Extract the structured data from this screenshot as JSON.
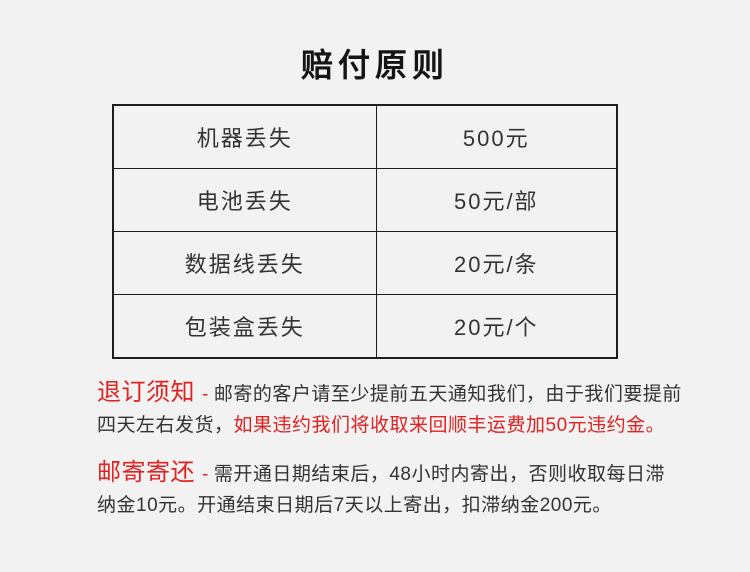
{
  "title": "赔付原则",
  "table": {
    "rows": [
      {
        "item": "机器丢失",
        "value": "500元"
      },
      {
        "item": "电池丢失",
        "value": "50元/部"
      },
      {
        "item": "数据线丢失",
        "value": "20元/条"
      },
      {
        "item": "包装盒丢失",
        "value": "20元/个"
      }
    ]
  },
  "notes": [
    {
      "heading": "退订须知",
      "separator": "-",
      "body": "邮寄的客户请至少提前五天通知我们，由于我们要提前四天左右发货，",
      "body_red": "如果违约我们将收取来回顺丰运费加50元违约金。"
    },
    {
      "heading": "邮寄寄还",
      "separator": "-",
      "body": "需开通日期结束后，48小时内寄出，否则收取每日滞纳金10元。开通结束日期后7天以上寄出，扣滞纳金200元。",
      "body_red": ""
    }
  ],
  "colors": {
    "background": "#f2f2f2",
    "text_dark": "#333333",
    "accent_red": "#e02222",
    "table_border": "#1e1e1e",
    "title_color": "#141414"
  }
}
